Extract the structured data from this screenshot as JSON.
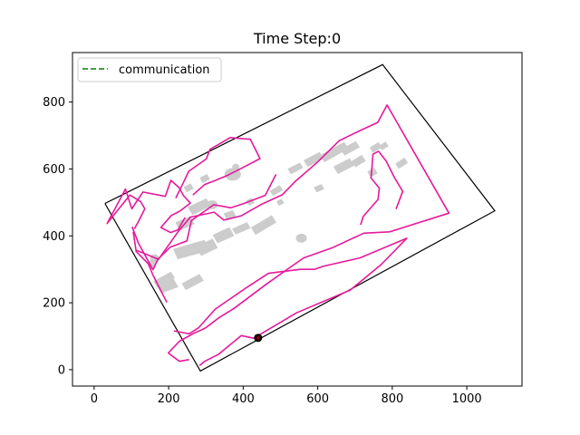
{
  "chart_data": {
    "type": "line",
    "title": "Time Step:0",
    "xlabel": "",
    "ylabel": "",
    "xlim": [
      -58,
      1148
    ],
    "ylim": [
      -49,
      948
    ],
    "xticks": [
      0,
      200,
      400,
      600,
      800,
      1000
    ],
    "yticks": [
      0,
      200,
      400,
      600,
      800
    ],
    "grid": false,
    "legend": {
      "placement": "top-left",
      "entries": [
        {
          "label": "communication",
          "color": "#008000",
          "style": "dashed"
        }
      ]
    },
    "boundary": {
      "color": "#000000",
      "points": [
        [
          29,
          497
        ],
        [
          774,
          912
        ],
        [
          1075,
          475
        ],
        [
          285,
          -4
        ],
        [
          29,
          497
        ]
      ]
    },
    "robot": {
      "x": 440,
      "y": 95,
      "color": "#000000"
    },
    "paths": {
      "color": "#e6199b",
      "series": [
        [
          [
            105,
            412
          ],
          [
            113,
            353
          ],
          [
            145,
            317
          ],
          [
            158,
            283
          ],
          [
            195,
            201
          ]
        ],
        [
          [
            102,
            427
          ],
          [
            119,
            378
          ],
          [
            158,
            299
          ],
          [
            171,
            330
          ],
          [
            204,
            366
          ],
          [
            249,
            385
          ],
          [
            261,
            446
          ],
          [
            321,
            493
          ],
          [
            367,
            484
          ],
          [
            402,
            497
          ],
          [
            459,
            521
          ],
          [
            488,
            584
          ]
        ],
        [
          [
            283,
            12
          ],
          [
            295,
            24
          ],
          [
            334,
            46
          ],
          [
            395,
            102
          ],
          [
            428,
            94
          ],
          [
            516,
            152
          ],
          [
            543,
            170
          ],
          [
            687,
            238
          ],
          [
            770,
            314
          ],
          [
            839,
            393
          ],
          [
            713,
            334
          ],
          [
            614,
            309
          ],
          [
            591,
            300
          ],
          [
            553,
            300
          ],
          [
            468,
            288
          ],
          [
            407,
            244
          ],
          [
            325,
            181
          ],
          [
            281,
            126
          ],
          [
            255,
            107
          ],
          [
            214,
            116
          ]
        ],
        [
          [
            113,
            357
          ],
          [
            173,
            330
          ],
          [
            225,
            412
          ],
          [
            258,
            456
          ],
          [
            322,
            471
          ],
          [
            348,
            447
          ],
          [
            395,
            460
          ],
          [
            447,
            493
          ],
          [
            505,
            523
          ],
          [
            540,
            563
          ],
          [
            600,
            621
          ],
          [
            657,
            684
          ],
          [
            714,
            715
          ],
          [
            761,
            739
          ],
          [
            786,
            791
          ],
          [
            952,
            468
          ],
          [
            793,
            412
          ],
          [
            724,
            408
          ],
          [
            640,
            365
          ],
          [
            562,
            334
          ],
          [
            465,
            258
          ],
          [
            374,
            182
          ],
          [
            336,
            156
          ],
          [
            298,
            124
          ],
          [
            268,
            109
          ],
          [
            229,
            85
          ],
          [
            199,
            50
          ],
          [
            229,
            25
          ],
          [
            255,
            30
          ]
        ],
        [
          [
            108,
            421
          ],
          [
            118,
            441
          ],
          [
            136,
            481
          ],
          [
            125,
            502
          ],
          [
            96,
            522
          ],
          [
            35,
            437
          ],
          [
            84,
            540
          ],
          [
            101,
            481
          ],
          [
            131,
            531
          ],
          [
            191,
            518
          ],
          [
            206,
            566
          ],
          [
            228,
            544
          ],
          [
            240,
            520
          ],
          [
            258,
            498
          ],
          [
            230,
            474
          ],
          [
            207,
            461
          ],
          [
            179,
            425
          ],
          [
            205,
            410
          ],
          [
            225,
            418
          ],
          [
            244,
            455
          ]
        ],
        [
          [
            219,
            513
          ],
          [
            235,
            549
          ],
          [
            254,
            593
          ],
          [
            301,
            630
          ],
          [
            311,
            659
          ],
          [
            341,
            678
          ],
          [
            365,
            694
          ],
          [
            402,
            690
          ],
          [
            419,
            689
          ],
          [
            445,
            631
          ],
          [
            390,
            599
          ],
          [
            360,
            582
          ],
          [
            326,
            566
          ],
          [
            296,
            553
          ],
          [
            265,
            522
          ]
        ],
        [
          [
            715,
            433
          ],
          [
            722,
            458
          ],
          [
            762,
            509
          ],
          [
            765,
            543
          ],
          [
            743,
            573
          ],
          [
            746,
            614
          ],
          [
            748,
            644
          ],
          [
            763,
            653
          ],
          [
            784,
            623
          ],
          [
            806,
            574
          ],
          [
            828,
            533
          ],
          [
            810,
            480
          ]
        ]
      ]
    },
    "obstacles": {
      "color": "#cccccc",
      "rects": [
        [
          [
            224,
            330
          ],
          [
            310,
            356
          ],
          [
            296,
            388
          ],
          [
            212,
            361
          ]
        ],
        [
          [
            230,
            416
          ],
          [
            270,
            436
          ],
          [
            258,
            459
          ],
          [
            218,
            440
          ]
        ],
        [
          [
            264,
            462
          ],
          [
            315,
            490
          ],
          [
            301,
            512
          ],
          [
            251,
            486
          ]
        ],
        [
          [
            248,
            530
          ],
          [
            267,
            541
          ],
          [
            259,
            557
          ],
          [
            240,
            546
          ]
        ],
        [
          [
            291,
            558
          ],
          [
            311,
            569
          ],
          [
            303,
            585
          ],
          [
            283,
            574
          ]
        ],
        [
          [
            287,
            340
          ],
          [
            332,
            364
          ],
          [
            318,
            392
          ],
          [
            273,
            367
          ]
        ],
        [
          [
            331,
            378
          ],
          [
            376,
            400
          ],
          [
            363,
            426
          ],
          [
            318,
            403
          ]
        ],
        [
          [
            380,
            404
          ],
          [
            420,
            423
          ],
          [
            410,
            441
          ],
          [
            370,
            421
          ]
        ],
        [
          [
            357,
            446
          ],
          [
            382,
            456
          ],
          [
            372,
            477
          ],
          [
            347,
            467
          ]
        ],
        [
          [
            416,
            491
          ],
          [
            431,
            499
          ],
          [
            423,
            514
          ],
          [
            408,
            506
          ]
        ],
        [
          [
            433,
            403
          ],
          [
            489,
            440
          ],
          [
            477,
            462
          ],
          [
            421,
            425
          ]
        ],
        [
          [
            480,
            519
          ],
          [
            507,
            537
          ],
          [
            498,
            552
          ],
          [
            471,
            534
          ]
        ],
        [
          [
            528,
            584
          ],
          [
            561,
            603
          ],
          [
            552,
            619
          ],
          [
            519,
            600
          ]
        ],
        [
          [
            573,
            606
          ],
          [
            616,
            631
          ],
          [
            605,
            651
          ],
          [
            562,
            626
          ]
        ],
        [
          [
            618,
            620
          ],
          [
            683,
            661
          ],
          [
            671,
            681
          ],
          [
            606,
            641
          ]
        ],
        [
          [
            672,
            640
          ],
          [
            713,
            665
          ],
          [
            702,
            683
          ],
          [
            661,
            658
          ]
        ],
        [
          [
            654,
            585
          ],
          [
            698,
            610
          ],
          [
            686,
            632
          ],
          [
            642,
            607
          ]
        ],
        [
          [
            701,
            605
          ],
          [
            729,
            624
          ],
          [
            718,
            642
          ],
          [
            690,
            623
          ]
        ],
        [
          [
            742,
            575
          ],
          [
            761,
            587
          ],
          [
            752,
            604
          ],
          [
            733,
            592
          ]
        ],
        [
          [
            748,
            648
          ],
          [
            772,
            664
          ],
          [
            763,
            680
          ],
          [
            739,
            664
          ]
        ],
        [
          [
            772,
            656
          ],
          [
            790,
            668
          ],
          [
            782,
            682
          ],
          [
            764,
            670
          ]
        ],
        [
          [
            817,
            600
          ],
          [
            842,
            618
          ],
          [
            833,
            634
          ],
          [
            808,
            616
          ]
        ],
        [
          [
            597,
            530
          ],
          [
            618,
            540
          ],
          [
            610,
            555
          ],
          [
            589,
            545
          ]
        ],
        [
          [
            496,
            490
          ],
          [
            510,
            498
          ],
          [
            503,
            511
          ],
          [
            489,
            503
          ]
        ],
        [
          [
            153,
            300
          ],
          [
            166,
            312
          ],
          [
            155,
            330
          ],
          [
            142,
            318
          ]
        ],
        [
          [
            180,
            228
          ],
          [
            226,
            247
          ],
          [
            213,
            272
          ],
          [
            167,
            253
          ]
        ],
        [
          [
            170,
            245
          ],
          [
            217,
            274
          ],
          [
            206,
            293
          ],
          [
            159,
            264
          ]
        ],
        [
          [
            246,
            238
          ],
          [
            294,
            266
          ],
          [
            283,
            286
          ],
          [
            235,
            258
          ]
        ]
      ]
    }
  }
}
